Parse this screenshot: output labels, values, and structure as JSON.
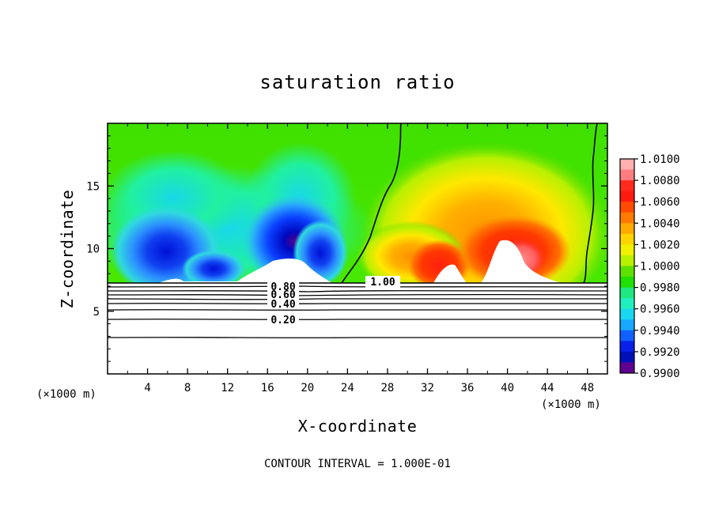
{
  "chart_data": {
    "type": "heatmap",
    "title": "saturation ratio",
    "xlabel": "X-coordinate",
    "ylabel": "Z-coordinate",
    "x_unit_left": "(×1000 m)",
    "x_unit_right": "(×1000 m)",
    "xlim": [
      0,
      50
    ],
    "ylim": [
      0,
      20
    ],
    "xticks": [
      "4",
      "8",
      "12",
      "16",
      "20",
      "24",
      "28",
      "32",
      "36",
      "40",
      "44",
      "48"
    ],
    "yticks": [
      "5",
      "10",
      "15"
    ],
    "colorbar": {
      "labels": [
        "1.0100",
        "1.0080",
        "1.0060",
        "1.0040",
        "1.0020",
        "1.0000",
        "0.9980",
        "0.9960",
        "0.9940",
        "0.9920",
        "0.9900"
      ],
      "range": [
        0.99,
        1.01
      ]
    },
    "contour_labels": [
      "1.00",
      "0.80",
      "0.60",
      "0.40",
      "0.20"
    ],
    "contour_interval_text": "CONTOUR INTERVAL = 1.000E-01",
    "shaded_region_z_min": 7.2,
    "unshaded_below": "contour lines only (0.0 to 0.9) beneath z ≈ 7.2 km",
    "regions": [
      {
        "x": 7,
        "z": 9.5,
        "value": 0.9915
      },
      {
        "x": 18.5,
        "z": 10.5,
        "value": 0.9905
      },
      {
        "x": 10,
        "z": 12,
        "value": 0.995
      },
      {
        "x": 34,
        "z": 10,
        "value": 1.007
      },
      {
        "x": 40,
        "z": 12,
        "value": 1.007
      },
      {
        "x": 36,
        "z": 15,
        "value": 1.004
      },
      {
        "x": 5,
        "z": 17,
        "value": 0.999
      }
    ]
  }
}
